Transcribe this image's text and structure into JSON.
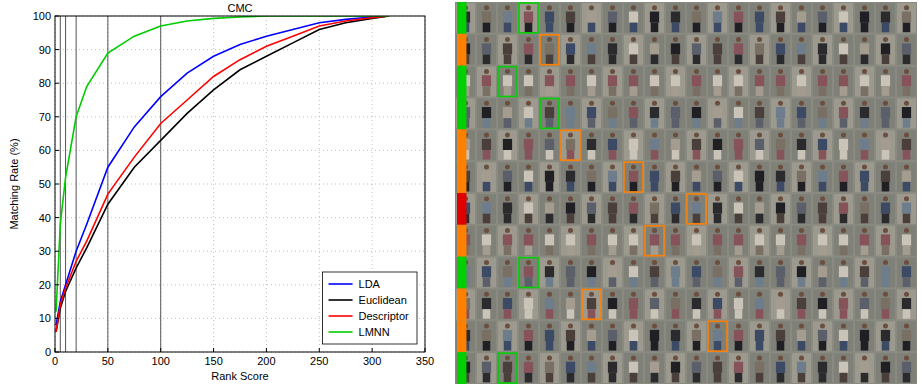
{
  "chart_data": {
    "type": "line",
    "title": "CMC",
    "x_label": "Rank Score",
    "y_label": "Matching Rate (%)",
    "x": [
      1,
      5,
      10,
      20,
      30,
      50,
      75,
      100,
      125,
      150,
      175,
      200,
      225,
      250,
      275,
      300,
      316
    ],
    "series": [
      {
        "name": "LDA",
        "color": "#0000ff",
        "values": [
          8,
          15,
          20,
          30,
          38,
          55,
          67,
          76,
          83,
          88,
          91.5,
          94,
          96,
          98,
          99,
          99.7,
          100
        ]
      },
      {
        "name": "Euclidean",
        "color": "#000000",
        "values": [
          6,
          13,
          18,
          25,
          31,
          44,
          55,
          63,
          71,
          78,
          84,
          88,
          92,
          96,
          98,
          99.3,
          100
        ]
      },
      {
        "name": "Descriptor",
        "color": "#ff0000",
        "values": [
          6,
          14,
          19,
          27,
          33,
          47,
          58,
          68,
          75,
          82,
          87,
          91,
          94,
          97,
          98.5,
          99.5,
          100
        ]
      },
      {
        "name": "LMNN",
        "color": "#00cc00",
        "values": [
          12,
          38,
          52,
          70,
          79,
          89,
          94,
          97,
          98.5,
          99.3,
          99.7,
          100,
          100,
          100,
          100,
          100,
          100
        ]
      }
    ],
    "vertical_lines": [
      5,
      10,
      20,
      50,
      100
    ],
    "xlim": [
      0,
      350
    ],
    "xticks": [
      0,
      50,
      100,
      150,
      200,
      250,
      300,
      350
    ],
    "ylim": [
      0,
      100
    ],
    "yticks": [
      0,
      10,
      20,
      30,
      40,
      50,
      60,
      70,
      80,
      90,
      100
    ],
    "grid": true,
    "legend": "lower right"
  }
}
